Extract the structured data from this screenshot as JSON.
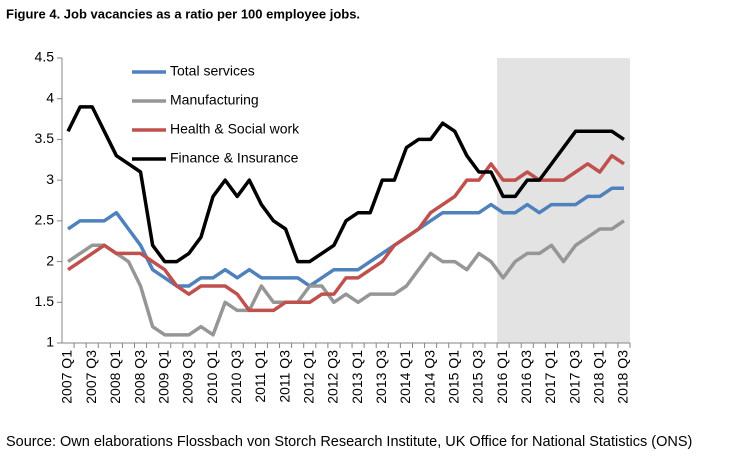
{
  "chart_data": {
    "type": "line",
    "title": "Figure 4. Job vacancies as a ratio per 100 employee jobs.",
    "source": "Source: Own elaborations Flossbach von Storch Research Institute, UK Office for National Statistics (ONS)",
    "categories": [
      "2007 Q1",
      null,
      "2007 Q3",
      null,
      "2008 Q1",
      null,
      "2008 Q3",
      null,
      "2009 Q1",
      null,
      "2009 Q3",
      null,
      "2010 Q1",
      null,
      "2010 Q3",
      null,
      "2011 Q1",
      null,
      "2011 Q3",
      null,
      "2012 Q1",
      null,
      "2012 Q3",
      null,
      "2013 Q1",
      null,
      "2013 Q3",
      null,
      "2014 Q1",
      null,
      "2014 Q3",
      null,
      "2015 Q1",
      null,
      "2015 Q3",
      null,
      "2016 Q1",
      null,
      "2016 Q3",
      null,
      "2017 Q1",
      null,
      "2017 Q3",
      null,
      "2018 Q1",
      null,
      "2018 Q3"
    ],
    "shaded_from": "2016 Q1",
    "shade_color": "#e3e3e3",
    "series": [
      {
        "name": "Total services",
        "color": "#4f81bd",
        "values": [
          2.4,
          2.5,
          2.5,
          2.5,
          2.6,
          2.4,
          2.2,
          1.9,
          1.8,
          1.7,
          1.7,
          1.8,
          1.8,
          1.9,
          1.8,
          1.9,
          1.8,
          1.8,
          1.8,
          1.8,
          1.7,
          1.8,
          1.9,
          1.9,
          1.9,
          2.0,
          2.1,
          2.2,
          2.3,
          2.4,
          2.5,
          2.6,
          2.6,
          2.6,
          2.6,
          2.7,
          2.6,
          2.6,
          2.7,
          2.6,
          2.7,
          2.7,
          2.7,
          2.8,
          2.8,
          2.9,
          2.9
        ]
      },
      {
        "name": "Manufacturing",
        "color": "#969696",
        "values": [
          2.0,
          2.1,
          2.2,
          2.2,
          2.1,
          2.0,
          1.7,
          1.2,
          1.1,
          1.1,
          1.1,
          1.2,
          1.1,
          1.5,
          1.4,
          1.4,
          1.7,
          1.5,
          1.5,
          1.5,
          1.7,
          1.7,
          1.5,
          1.6,
          1.5,
          1.6,
          1.6,
          1.6,
          1.7,
          1.9,
          2.1,
          2.0,
          2.0,
          1.9,
          2.1,
          2.0,
          1.8,
          2.0,
          2.1,
          2.1,
          2.2,
          2.0,
          2.2,
          2.3,
          2.4,
          2.4,
          2.5
        ]
      },
      {
        "name": "Health & Social work",
        "color": "#c0504d",
        "values": [
          1.9,
          2.0,
          2.1,
          2.2,
          2.1,
          2.1,
          2.1,
          2.0,
          1.9,
          1.7,
          1.6,
          1.7,
          1.7,
          1.7,
          1.6,
          1.4,
          1.4,
          1.4,
          1.5,
          1.5,
          1.5,
          1.6,
          1.6,
          1.8,
          1.8,
          1.9,
          2.0,
          2.2,
          2.3,
          2.4,
          2.6,
          2.7,
          2.8,
          3.0,
          3.0,
          3.2,
          3.0,
          3.0,
          3.1,
          3.0,
          3.0,
          3.0,
          3.1,
          3.2,
          3.1,
          3.3,
          3.2
        ]
      },
      {
        "name": "Finance & Insurance",
        "color": "#000000",
        "values": [
          3.6,
          3.9,
          3.9,
          3.6,
          3.3,
          3.2,
          3.1,
          2.2,
          2.0,
          2.0,
          2.1,
          2.3,
          2.8,
          3.0,
          2.8,
          3.0,
          2.7,
          2.5,
          2.4,
          2.0,
          2.0,
          2.1,
          2.2,
          2.5,
          2.6,
          2.6,
          3.0,
          3.0,
          3.4,
          3.5,
          3.5,
          3.7,
          3.6,
          3.3,
          3.1,
          3.1,
          2.8,
          2.8,
          3.0,
          3.0,
          3.2,
          3.4,
          3.6,
          3.6,
          3.6,
          3.6,
          3.5
        ]
      }
    ],
    "ylim": [
      1,
      4.5
    ],
    "yticks": [
      1,
      1.5,
      2,
      2.5,
      3,
      3.5,
      4,
      4.5
    ],
    "grid": false,
    "legend": "top-left"
  }
}
